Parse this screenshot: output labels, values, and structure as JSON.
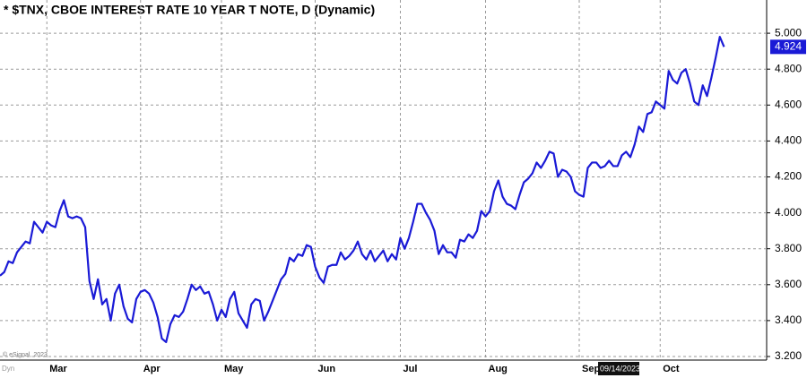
{
  "chart_data": {
    "type": "line",
    "title": "* $TNX, CBOE INTEREST RATE 10 YEAR T NOTE, D (Dynamic)",
    "categories": [
      null,
      null,
      null,
      null,
      null,
      null,
      null,
      null,
      null,
      null,
      null,
      "Mar",
      null,
      null,
      null,
      null,
      null,
      null,
      null,
      null,
      null,
      null,
      null,
      null,
      null,
      null,
      null,
      null,
      null,
      null,
      null,
      null,
      null,
      "Apr",
      null,
      null,
      null,
      null,
      null,
      null,
      null,
      null,
      null,
      null,
      null,
      null,
      null,
      null,
      null,
      null,
      null,
      null,
      "May",
      null,
      null,
      null,
      null,
      null,
      null,
      null,
      null,
      null,
      null,
      null,
      null,
      null,
      null,
      null,
      null,
      null,
      null,
      null,
      null,
      null,
      "Jun",
      null,
      null,
      null,
      null,
      null,
      null,
      null,
      null,
      null,
      null,
      null,
      null,
      null,
      null,
      null,
      null,
      null,
      null,
      null,
      "Jul",
      null,
      null,
      null,
      null,
      null,
      null,
      null,
      null,
      null,
      null,
      null,
      null,
      null,
      null,
      null,
      null,
      null,
      null,
      null,
      "Aug",
      null,
      null,
      null,
      null,
      null,
      null,
      null,
      null,
      null,
      null,
      null,
      null,
      null,
      null,
      null,
      null,
      null,
      null,
      null,
      null,
      null,
      "Sep",
      null,
      null,
      null,
      null,
      null,
      null,
      null,
      null,
      null,
      null,
      null,
      null,
      null,
      null,
      null,
      null,
      null,
      null,
      "Oct",
      null,
      null,
      null,
      null,
      null,
      null,
      null,
      null,
      null,
      null,
      null,
      null,
      null,
      null,
      null
    ],
    "values": [
      3.65,
      3.67,
      3.73,
      3.72,
      3.78,
      3.81,
      3.84,
      3.83,
      3.95,
      3.92,
      3.89,
      3.95,
      3.93,
      3.92,
      4.01,
      4.07,
      3.98,
      3.97,
      3.98,
      3.97,
      3.92,
      3.62,
      3.52,
      3.63,
      3.49,
      3.52,
      3.4,
      3.55,
      3.6,
      3.48,
      3.41,
      3.39,
      3.52,
      3.56,
      3.57,
      3.55,
      3.5,
      3.42,
      3.3,
      3.28,
      3.38,
      3.43,
      3.42,
      3.45,
      3.52,
      3.6,
      3.57,
      3.59,
      3.55,
      3.56,
      3.49,
      3.4,
      3.46,
      3.42,
      3.52,
      3.56,
      3.44,
      3.4,
      3.36,
      3.49,
      3.52,
      3.51,
      3.4,
      3.45,
      3.51,
      3.57,
      3.63,
      3.66,
      3.75,
      3.73,
      3.77,
      3.76,
      3.82,
      3.81,
      3.7,
      3.64,
      3.61,
      3.7,
      3.71,
      3.71,
      3.78,
      3.74,
      3.76,
      3.79,
      3.84,
      3.77,
      3.74,
      3.79,
      3.73,
      3.76,
      3.79,
      3.73,
      3.77,
      3.74,
      3.86,
      3.8,
      3.86,
      3.95,
      4.05,
      4.05,
      4.0,
      3.96,
      3.9,
      3.77,
      3.82,
      3.78,
      3.78,
      3.75,
      3.85,
      3.84,
      3.88,
      3.86,
      3.9,
      4.01,
      3.98,
      4.01,
      4.12,
      4.18,
      4.09,
      4.05,
      4.04,
      4.02,
      4.1,
      4.17,
      4.19,
      4.22,
      4.28,
      4.25,
      4.29,
      4.34,
      4.33,
      4.2,
      4.24,
      4.23,
      4.2,
      4.12,
      4.1,
      4.09,
      4.25,
      4.28,
      4.28,
      4.25,
      4.26,
      4.29,
      4.26,
      4.26,
      4.32,
      4.34,
      4.31,
      4.38,
      4.48,
      4.45,
      4.55,
      4.56,
      4.62,
      4.6,
      4.58,
      4.79,
      4.74,
      4.72,
      4.78,
      4.8,
      4.72,
      4.62,
      4.6,
      4.71,
      4.65,
      4.75,
      4.86,
      4.98,
      4.924
    ],
    "color": "#1a1ad6",
    "ylim": [
      3.19,
      5.185
    ],
    "yticks": [
      {
        "value": 3.2,
        "label": "3.200"
      },
      {
        "value": 3.4,
        "label": "3.400"
      },
      {
        "value": 3.6,
        "label": "3.600"
      },
      {
        "value": 3.8,
        "label": "3.800"
      },
      {
        "value": 4.0,
        "label": "4.000"
      },
      {
        "value": 4.2,
        "label": "4.200"
      },
      {
        "value": 4.4,
        "label": "4.400"
      },
      {
        "value": 4.6,
        "label": "4.600"
      },
      {
        "value": 4.8,
        "label": "4.800"
      },
      {
        "value": 5.0,
        "label": "5.000"
      }
    ],
    "grid": true,
    "copyright": "© eSignal, 2023",
    "mode_label": "Dyn",
    "crosshair_date": "09/14/2023"
  }
}
